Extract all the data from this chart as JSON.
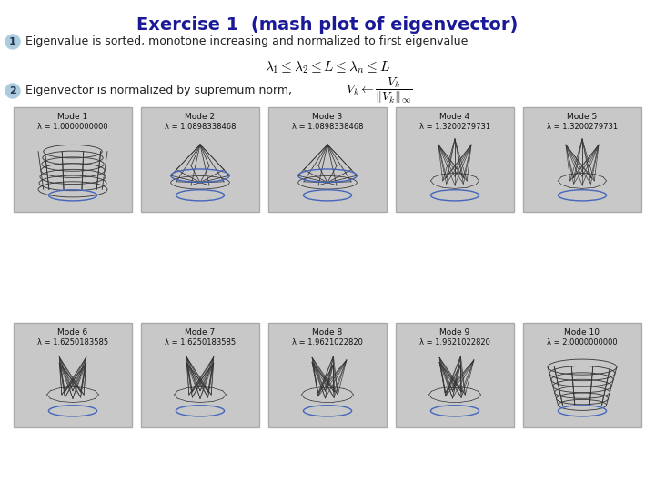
{
  "title": "Exercise 1  (mash plot of eigenvector)",
  "title_color": "#1a1a99",
  "title_fontsize": 14,
  "bullet1_num": "1",
  "bullet1_text": "Eigenvalue is sorted, monotone increasing and normalized to first eigenvalue",
  "bullet2_num": "2",
  "bullet2_text": "Eigenvector is normalized by supremum norm,  ",
  "formula1": "$\\lambda_1 \\leq \\lambda_2 \\leq L \\leq \\lambda_n \\leq L$",
  "formula2": "$V_k \\leftarrow \\dfrac{V_k}{\\|V_k\\|_\\infty}$",
  "bullet_circle_color": "#aaccdd",
  "bullet_text_color": "#222222",
  "modes_row1": [
    "Mode 1",
    "Mode 2",
    "Mode 3",
    "Mode 4",
    "Mode 5"
  ],
  "lambdas_row1": [
    "λ = 1.0000000000",
    "λ = 1.0898338468",
    "λ = 1.0898338468",
    "λ = 1.3200279731",
    "λ = 1.3200279731"
  ],
  "modes_row2": [
    "Mode 6",
    "Mode 7",
    "Mode 8",
    "Mode 9",
    "Mode 10"
  ],
  "lambdas_row2": [
    "λ = 1.6250183585",
    "λ = 1.6250183585",
    "λ = 1.9621022820",
    "λ = 1.9621022820",
    "λ = 2.0000000000"
  ],
  "panel_bg": "#c8c8c8",
  "panel_border": "#aaaaaa",
  "bg_color": "#ffffff"
}
